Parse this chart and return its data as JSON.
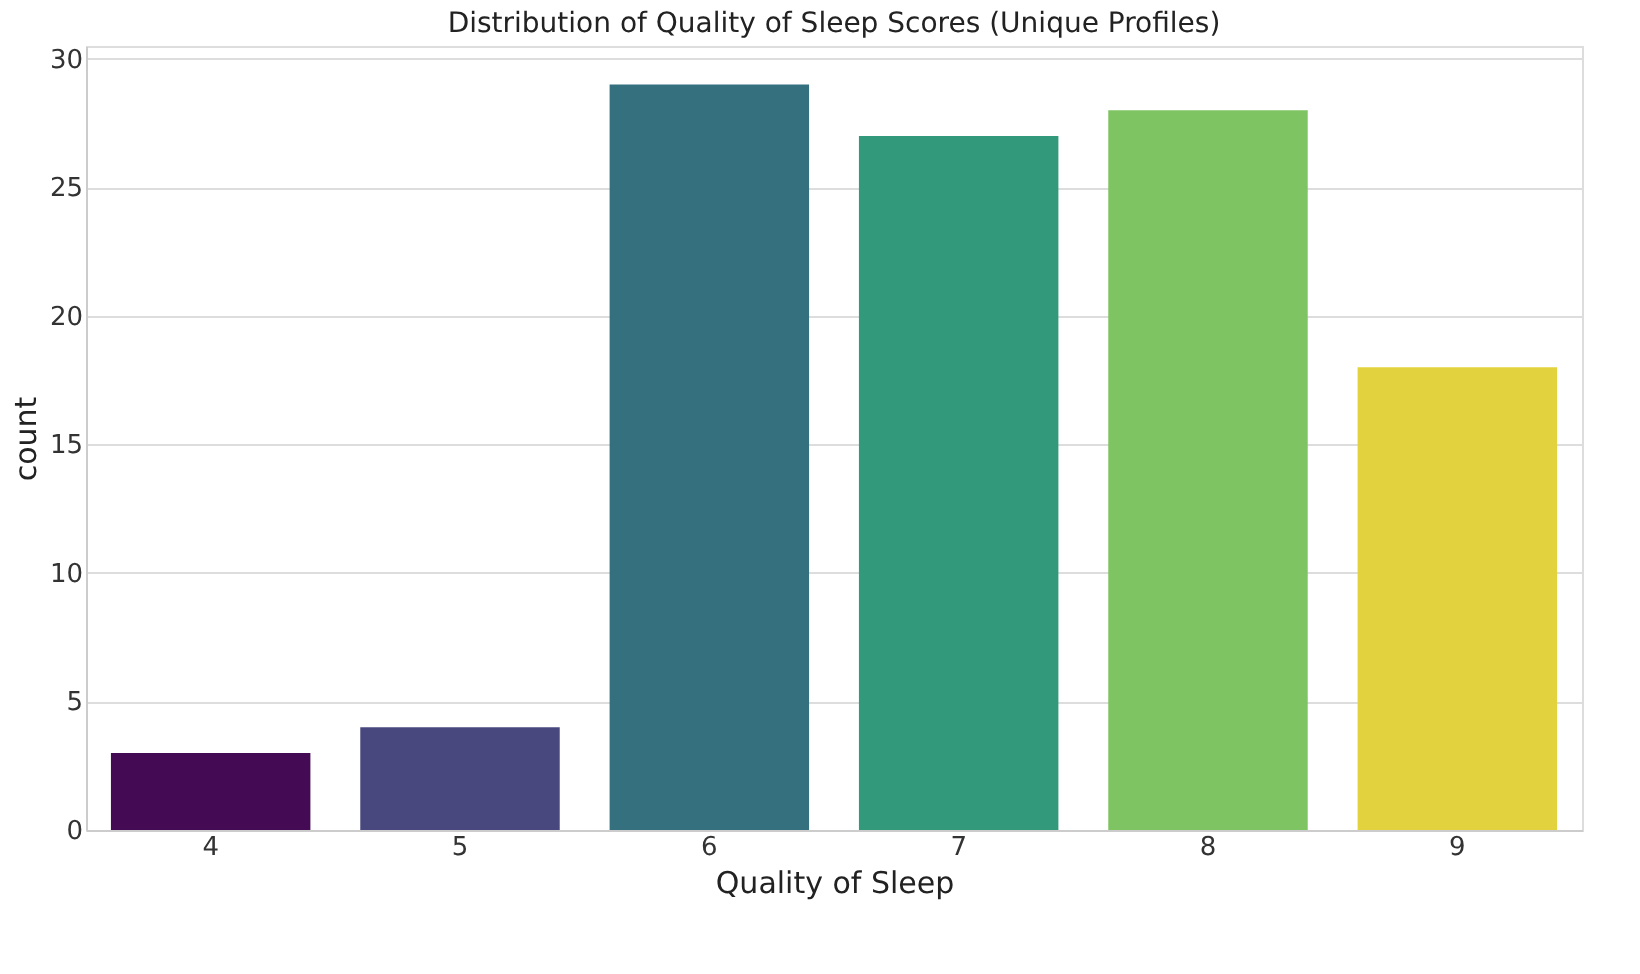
{
  "chart_data": {
    "type": "bar",
    "title": "Distribution of Quality of Sleep Scores (Unique Profiles)",
    "xlabel": "Quality of Sleep",
    "ylabel": "count",
    "categories": [
      "4",
      "5",
      "6",
      "7",
      "8",
      "9"
    ],
    "values": [
      3,
      4,
      29,
      27,
      28,
      18
    ],
    "colors": [
      "#440a53",
      "#48487e",
      "#35707e",
      "#32997a",
      "#7fc462",
      "#e2d33e"
    ],
    "ylim": [
      0,
      30.5
    ],
    "yticks": [
      0,
      5,
      10,
      15,
      20,
      25,
      30
    ],
    "grid": "y"
  }
}
